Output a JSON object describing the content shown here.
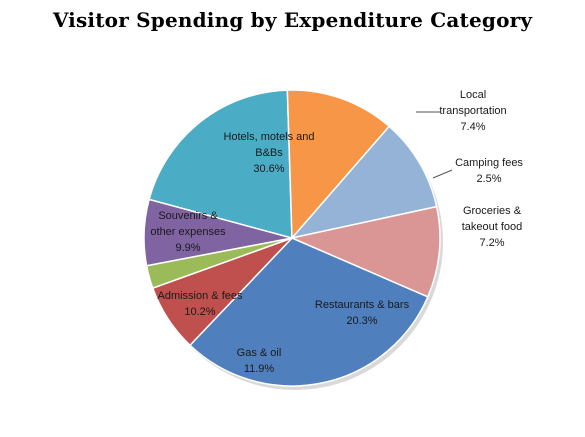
{
  "chart_data": {
    "type": "pie",
    "title": "Visitor Spending by Expenditure Category",
    "slices": [
      {
        "label_lines": [
          "Hotels, motels and",
          "B&Bs"
        ],
        "pct_text": "30.6%",
        "value": 30.6,
        "color": "#4f80bd"
      },
      {
        "label_lines": [
          "Local",
          "transportation"
        ],
        "pct_text": "7.4%",
        "value": 7.4,
        "color": "#c0504d"
      },
      {
        "label_lines": [
          "Camping  fees"
        ],
        "pct_text": "2.5%",
        "value": 2.5,
        "color": "#9bbb59"
      },
      {
        "label_lines": [
          "Groceries &",
          "takeout food"
        ],
        "pct_text": "7.2%",
        "value": 7.2,
        "color": "#8064a2"
      },
      {
        "label_lines": [
          "Restaurants & bars"
        ],
        "pct_text": "20.3%",
        "value": 20.3,
        "color": "#4bacc6"
      },
      {
        "label_lines": [
          "Gas & oil"
        ],
        "pct_text": "11.9%",
        "value": 11.9,
        "color": "#f79646"
      },
      {
        "label_lines": [
          "Admission  & fees"
        ],
        "pct_text": "10.2%",
        "value": 10.2,
        "color": "#95b3d7"
      },
      {
        "label_lines": [
          "Souvenirs &",
          "other expenses"
        ],
        "pct_text": "9.9%",
        "value": 9.9,
        "color": "#d99694"
      }
    ]
  }
}
